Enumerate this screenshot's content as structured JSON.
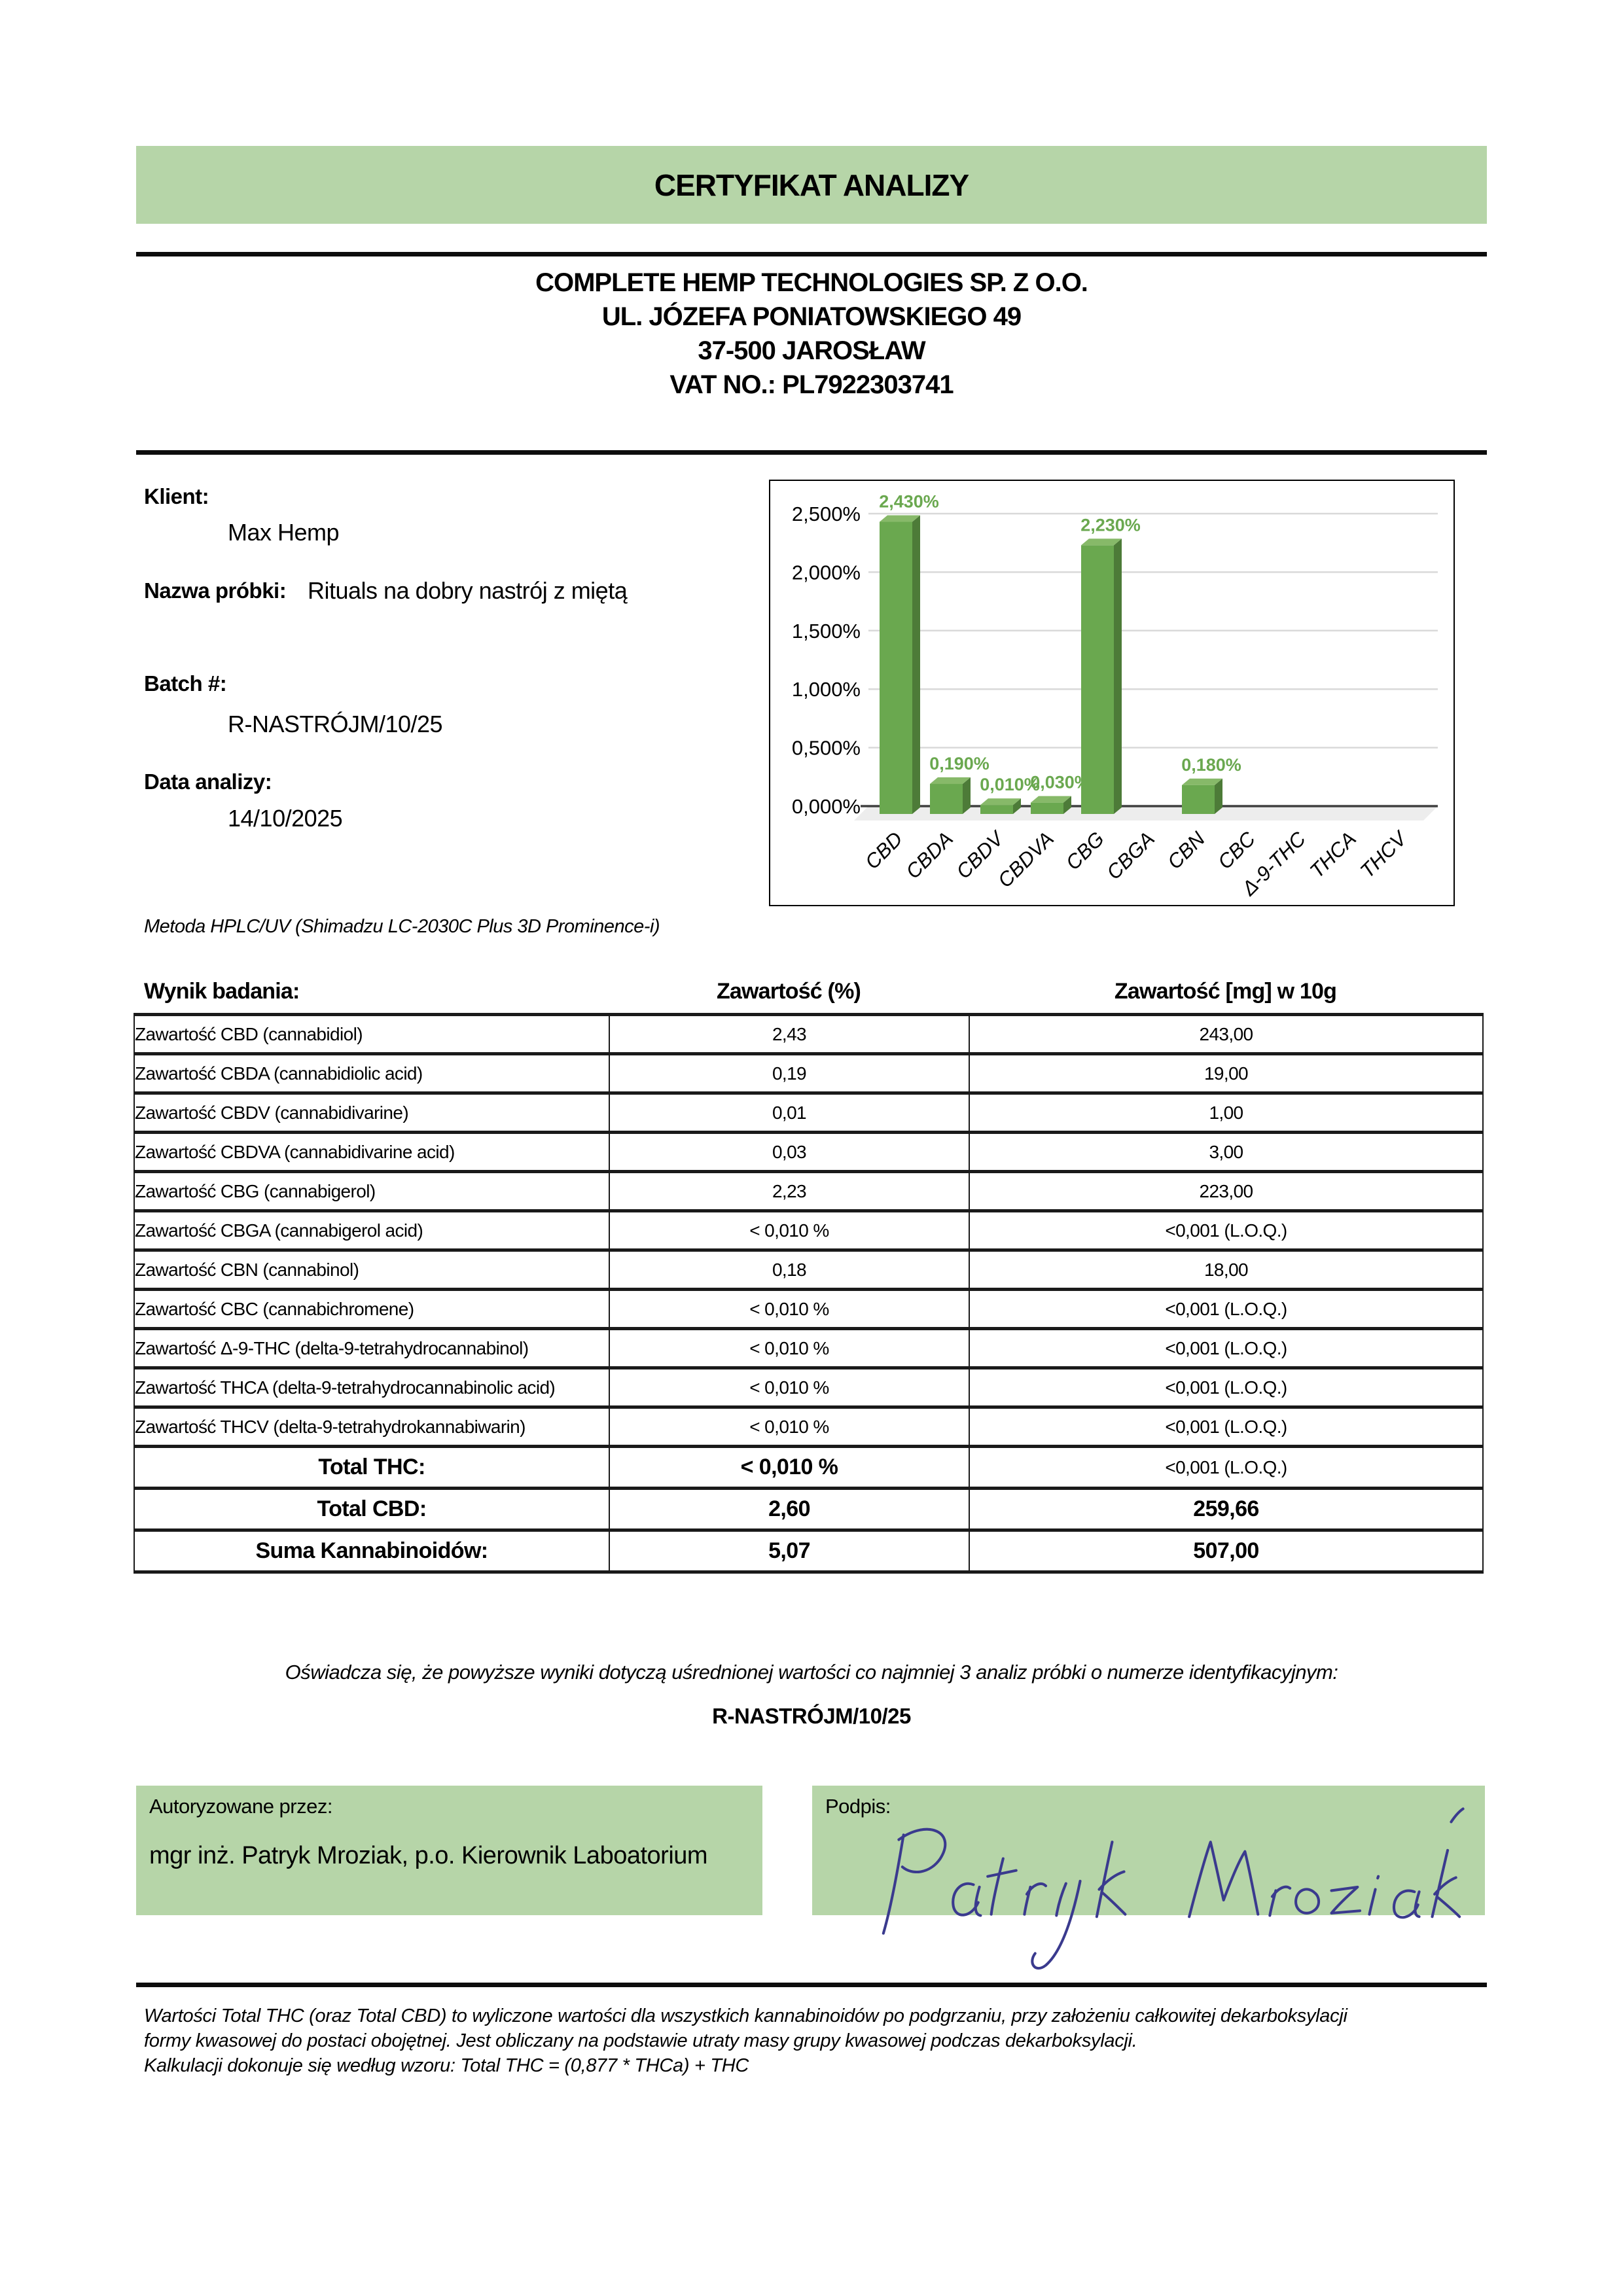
{
  "title": "CERTYFIKAT ANALIZY",
  "company": {
    "name": "COMPLETE HEMP TECHNOLOGIES SP. Z O.O.",
    "street": "UL. JÓZEFA PONIATOWSKIEGO 49",
    "city": "37-500 JAROSŁAW",
    "vat": "VAT NO.: PL7922303741"
  },
  "info": {
    "client_label": "Klient:",
    "client": "Max Hemp",
    "sample_label": "Nazwa próbki:",
    "sample": "Rituals na dobry nastrój z miętą",
    "batch_label": "Batch #:",
    "batch": "R-NASTRÓJM/10/25",
    "date_label": "Data analizy:",
    "date": "14/10/2025"
  },
  "method": "Metoda HPLC/UV (Shimadzu LC-2030C Plus 3D Prominence-i)",
  "chart_data": {
    "type": "bar",
    "style": "3d-column",
    "categories": [
      "CBD",
      "CBDA",
      "CBDV",
      "CBDVA",
      "CBG",
      "CBGA",
      "CBN",
      "CBC",
      "Δ-9-THC",
      "THCA",
      "THCV"
    ],
    "values": [
      2.43,
      0.19,
      0.01,
      0.03,
      2.23,
      0,
      0.18,
      0,
      0,
      0,
      0
    ],
    "data_labels": [
      "2,430%",
      "0,190%",
      "0,010%",
      "0,030%",
      "2,230%",
      "",
      "0,180%",
      "",
      "",
      "",
      ""
    ],
    "y_ticks": [
      "2,500%",
      "2,000%",
      "1,500%",
      "1,000%",
      "0,500%",
      "0,000%"
    ],
    "ylim": [
      0,
      2.5
    ],
    "grid": true,
    "legend": "none",
    "title": "",
    "xlabel": "",
    "ylabel": ""
  },
  "results": {
    "col1_header": "Wynik badania:",
    "col2_header": "Zawartość (%)",
    "col3_header": "Zawartość [mg] w 10g",
    "rows": [
      {
        "name": "Zawartość CBD (cannabidiol)",
        "pct": "2,43",
        "mg": "243,00"
      },
      {
        "name": "Zawartość CBDA (cannabidiolic acid)",
        "pct": "0,19",
        "mg": "19,00"
      },
      {
        "name": "Zawartość CBDV (cannabidivarine)",
        "pct": "0,01",
        "mg": "1,00"
      },
      {
        "name": "Zawartość CBDVA (cannabidivarine acid)",
        "pct": "0,03",
        "mg": "3,00"
      },
      {
        "name": "Zawartość CBG (cannabigerol)",
        "pct": "2,23",
        "mg": "223,00"
      },
      {
        "name": "Zawartość CBGA (cannabigerol acid)",
        "pct": "< 0,010 %",
        "mg": "<0,001 (L.O.Q.)"
      },
      {
        "name": "Zawartość CBN (cannabinol)",
        "pct": "0,18",
        "mg": "18,00"
      },
      {
        "name": "Zawartość CBC (cannabichromene)",
        "pct": "< 0,010 %",
        "mg": "<0,001 (L.O.Q.)"
      },
      {
        "name": "Zawartość Δ-9-THC (delta-9-tetrahydrocannabinol)",
        "pct": "< 0,010 %",
        "mg": "<0,001 (L.O.Q.)"
      },
      {
        "name": "Zawartość THCA (delta-9-tetrahydrocannabinolic acid)",
        "pct": "< 0,010 %",
        "mg": "<0,001 (L.O.Q.)"
      },
      {
        "name": "Zawartość THCV (delta-9-tetrahydrokannabiwarin)",
        "pct": "< 0,010 %",
        "mg": "<0,001 (L.O.Q.)"
      }
    ],
    "totals": [
      {
        "label": "Total THC:",
        "pct": "< 0,010 %",
        "mg": "<0,001 (L.O.Q.)",
        "mg_bold": false
      },
      {
        "label": "Total CBD:",
        "pct": "2,60",
        "mg": "259,66",
        "mg_bold": true
      },
      {
        "label": "Suma Kannabinoidów:",
        "pct": "5,07",
        "mg": "507,00",
        "mg_bold": true
      }
    ]
  },
  "statement": {
    "text": "Oświadcza się, że powyższe wyniki dotyczą uśrednionej wartości co najmniej 3 analiz próbki o numerze identyfikacyjnym:",
    "batch": "R-NASTRÓJM/10/25"
  },
  "authorization": {
    "label": "Autoryzowane przez:",
    "person": "mgr inż. Patryk Mroziak, p.o. Kierownik Laboatorium"
  },
  "signature": {
    "label": "Podpis:",
    "name": "Patryk Mroziak"
  },
  "footnote": {
    "lines": [
      "Wartości Total THC (oraz Total CBD) to wyliczone wartości dla wszystkich kannabinoidów po podgrzaniu, przy założeniu całkowitej dekarboksylacji",
      "formy kwasowej do postaci obojętnej. Jest obliczany na podstawie utraty masy grupy kwasowej podczas dekarboksylacji.",
      "Kalkulacji dokonuje się według wzoru: Total THC = (0,877 * THCa) + THC"
    ]
  },
  "colors": {
    "banner_green": "#b6d5a8",
    "bar_front": "#6aa84f",
    "bar_side": "#4d7b38",
    "bar_top": "#87b969",
    "value_label_green": "#6aa84f",
    "gridline": "#d9d9d9",
    "axis": "#404040",
    "floor": "#ededed",
    "signature_ink": "#3a3a8e"
  }
}
